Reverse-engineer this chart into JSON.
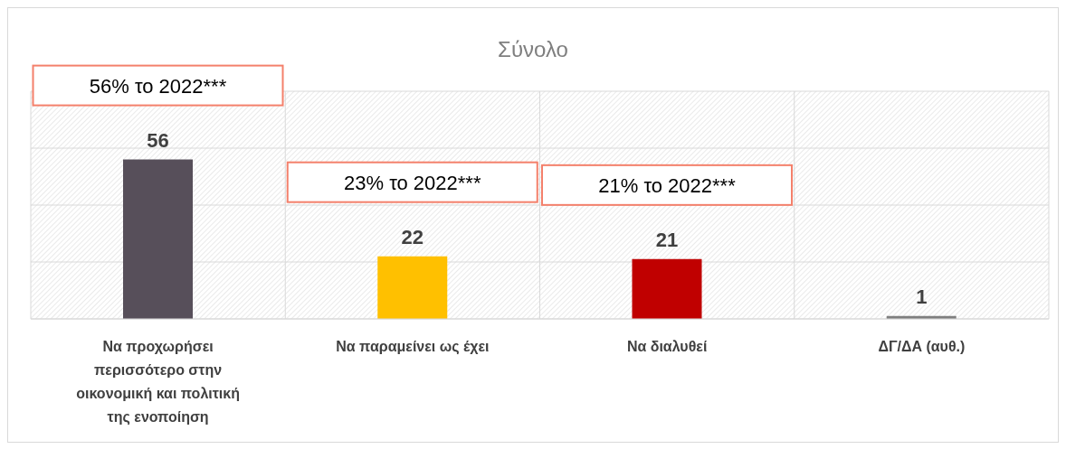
{
  "chart_data": {
    "type": "bar",
    "title": "Σύνολο",
    "categories": [
      "Να προχωρήσει περισσότερο στην οικονομική και πολιτική της ενοποίηση",
      "Να παραμείνει ως έχει",
      "Να διαλυθεί",
      "ΔΓ/ΔΑ (αυθ.)"
    ],
    "values": [
      56,
      22,
      21,
      1
    ],
    "colors": [
      "#574f5a",
      "#ffc000",
      "#c00000",
      "#7f7f7f"
    ],
    "ylim": [
      0,
      80
    ],
    "yticks": [
      {
        "value": 0,
        "label": null
      },
      {
        "value": 20,
        "label": null
      },
      {
        "value": 40,
        "label": null
      },
      {
        "value": 60,
        "label": null
      },
      {
        "value": 80,
        "label": null
      }
    ],
    "tick_labels": "x",
    "grid": true,
    "data_labels": true,
    "annotations": [
      "56% το 2022***",
      "23% το 2022***",
      "21% το 2022***"
    ]
  }
}
